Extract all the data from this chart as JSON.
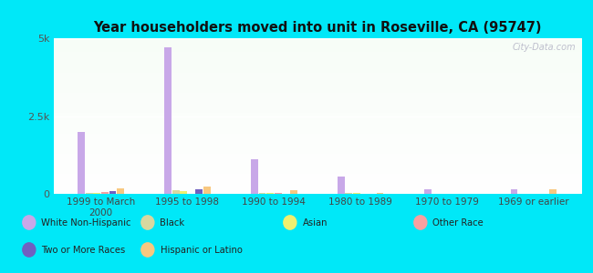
{
  "title": "Year householders moved into unit in Roseville, CA (95747)",
  "categories": [
    "1999 to March\n2000",
    "1995 to 1998",
    "1990 to 1994",
    "1980 to 1989",
    "1970 to 1979",
    "1969 or earlier"
  ],
  "series": [
    {
      "name": "White Non-Hispanic",
      "values": [
        2000,
        4700,
        1100,
        550,
        150,
        150
      ],
      "color": "#c8a8e8"
    },
    {
      "name": "Black",
      "values": [
        30,
        120,
        20,
        20,
        0,
        0
      ],
      "color": "#d8d8a0"
    },
    {
      "name": "Asian",
      "values": [
        20,
        80,
        20,
        20,
        0,
        0
      ],
      "color": "#f0f070"
    },
    {
      "name": "Other Race",
      "values": [
        60,
        0,
        20,
        0,
        0,
        0
      ],
      "color": "#f8a0a0"
    },
    {
      "name": "Two or More Races",
      "values": [
        100,
        150,
        0,
        0,
        0,
        0
      ],
      "color": "#7060c0"
    },
    {
      "name": "Hispanic or Latino",
      "values": [
        180,
        230,
        130,
        30,
        0,
        150
      ],
      "color": "#f8c880"
    }
  ],
  "ylim": [
    0,
    5000
  ],
  "yticks": [
    0,
    2500,
    5000
  ],
  "ytick_labels": [
    "0",
    "2.5k",
    "5k"
  ],
  "bar_width": 0.09,
  "background_color": "#00e8f8",
  "watermark": "City-Data.com",
  "legend_rows": [
    [
      {
        "label": "White Non-Hispanic",
        "color": "#c8a8e8"
      },
      {
        "label": "Black",
        "color": "#d8d8a0"
      },
      {
        "label": "Asian",
        "color": "#f0f070"
      },
      {
        "label": "Other Race",
        "color": "#f8a0a0"
      }
    ],
    [
      {
        "label": "Two or More Races",
        "color": "#7060c0"
      },
      {
        "label": "Hispanic or Latino",
        "color": "#f8c880"
      }
    ]
  ]
}
